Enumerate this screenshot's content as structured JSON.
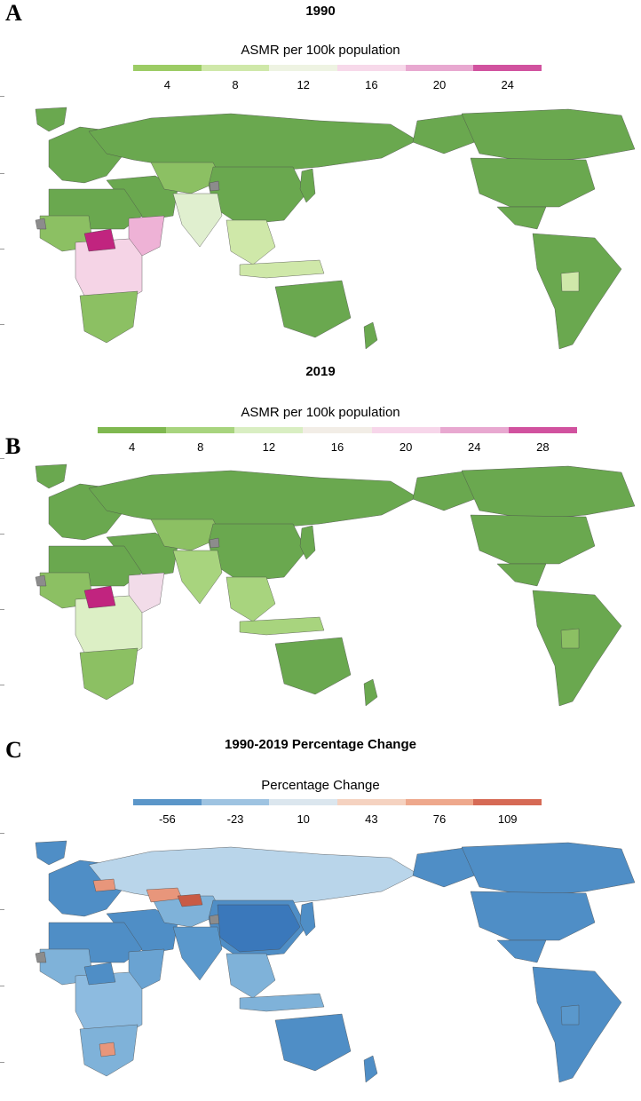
{
  "panels": [
    {
      "letter": "A",
      "title": "1990",
      "legend_title": "ASMR per 100k population",
      "legend_ticks": [
        "4",
        "8",
        "12",
        "16",
        "20",
        "24"
      ],
      "legend_colors": [
        "#9ccc65",
        "#cfe8a9",
        "#eef3e2",
        "#f7d9ea",
        "#e8a8d0",
        "#d1529f"
      ],
      "region_colors": {
        "land": "#6aa84f",
        "land_alt": "#8cc063",
        "russia": "#6aa84f",
        "india": "#e0efcf",
        "africa_mid": "#f5d4e6",
        "africa_hot": "#c1247f",
        "horn": "#eeb2d6",
        "se_asia": "#cfe8a9",
        "bolivia": "#cfe8a9",
        "nodata": "#8c8c8c"
      }
    },
    {
      "letter": "B",
      "title": "2019",
      "legend_title": "ASMR per 100k population",
      "legend_ticks": [
        "4",
        "8",
        "12",
        "16",
        "20",
        "24",
        "28"
      ],
      "legend_colors": [
        "#7fb850",
        "#a8d47e",
        "#d9eec2",
        "#f2ede6",
        "#f7d6ea",
        "#e8a8d0",
        "#d1529f"
      ],
      "region_colors": {
        "land": "#6aa84f",
        "land_alt": "#8cc063",
        "russia": "#6aa84f",
        "india": "#a8d47e",
        "africa_mid": "#dcefc5",
        "africa_hot": "#c1247f",
        "horn": "#f2dce9",
        "se_asia": "#a8d47e",
        "bolivia": "#8cc063",
        "nodata": "#8c8c8c"
      }
    },
    {
      "letter": "C",
      "title": "1990-2019 Percentage Change",
      "legend_title": "Percentage Change",
      "legend_ticks": [
        "-56",
        "-23",
        "10",
        "43",
        "76",
        "109"
      ],
      "legend_colors": [
        "#5b96c9",
        "#9ec3e1",
        "#dbe6ee",
        "#f5d2c0",
        "#eea88c",
        "#d66a55"
      ],
      "region_colors": {
        "land": "#4f8ec6",
        "land_alt": "#7fb2d9",
        "russia": "#b9d5ea",
        "india": "#5a98cc",
        "africa_mid": "#8dbbe0",
        "africa_hot": "#4f8ec6",
        "horn": "#6aa3d2",
        "se_asia": "#7fb2d9",
        "bolivia": "#5a98cc",
        "nodata": "#8c8c8c",
        "china": "#3a78bb",
        "hotspot": "#e8967b",
        "hotspot2": "#c95b45"
      }
    }
  ]
}
